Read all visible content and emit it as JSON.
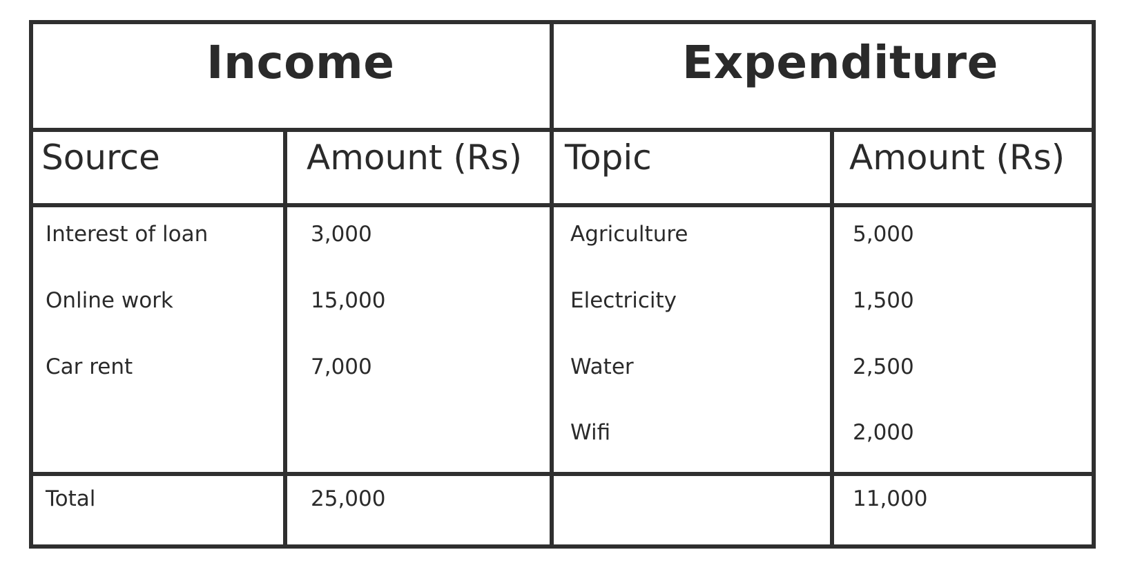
{
  "income": {
    "title": "Income",
    "source_header": "Source",
    "amount_header": "Amount (Rs)",
    "rows": [
      {
        "source": "Interest of loan",
        "amount": "3,000"
      },
      {
        "source": "Online work",
        "amount": "15,000"
      },
      {
        "source": "Car rent",
        "amount": "7,000"
      }
    ],
    "total_label": "Total",
    "total_amount": "25,000"
  },
  "expenditure": {
    "title": "Expenditure",
    "topic_header": "Topic",
    "amount_header": "Amount (Rs)",
    "rows": [
      {
        "topic": "Agriculture",
        "amount": "5,000"
      },
      {
        "topic": "Electricity",
        "amount": "1,500"
      },
      {
        "topic": "Water",
        "amount": "2,500"
      },
      {
        "topic": "Wifi",
        "amount": "2,000"
      }
    ],
    "total_amount": "11,000"
  }
}
